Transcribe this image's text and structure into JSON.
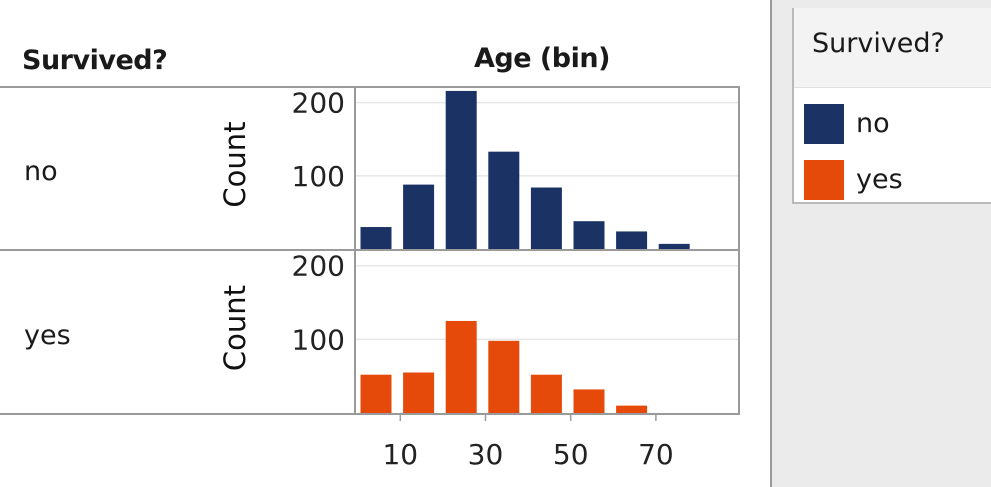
{
  "headers": {
    "row_header": "Survived?",
    "col_header": "Age (bin)"
  },
  "rows": [
    {
      "label": "no",
      "color": "#1b3265"
    },
    {
      "label": "yes",
      "color": "#e54a0a"
    }
  ],
  "legend": {
    "title": "Survived?",
    "items": [
      {
        "label": "no",
        "color": "#1b3265"
      },
      {
        "label": "yes",
        "color": "#e54a0a"
      }
    ]
  },
  "chart_data": {
    "type": "bar",
    "title": "",
    "xlabel": "Age (bin)",
    "ylabel": "Count",
    "x": [
      0,
      10,
      20,
      30,
      40,
      50,
      60,
      70
    ],
    "xticks": [
      "10",
      "30",
      "50",
      "70"
    ],
    "xtick_values": [
      10,
      30,
      50,
      70
    ],
    "yticks": [
      "100",
      "200"
    ],
    "ytick_values": [
      100,
      200
    ],
    "ylim": [
      0,
      220
    ],
    "grid": true,
    "legend_position": "right",
    "series": [
      {
        "name": "no",
        "color": "#1b3265",
        "values": [
          30,
          88,
          216,
          133,
          84,
          38,
          24,
          7
        ]
      },
      {
        "name": "yes",
        "color": "#e54a0a",
        "values": [
          52,
          55,
          125,
          98,
          52,
          32,
          10,
          0
        ]
      }
    ]
  }
}
